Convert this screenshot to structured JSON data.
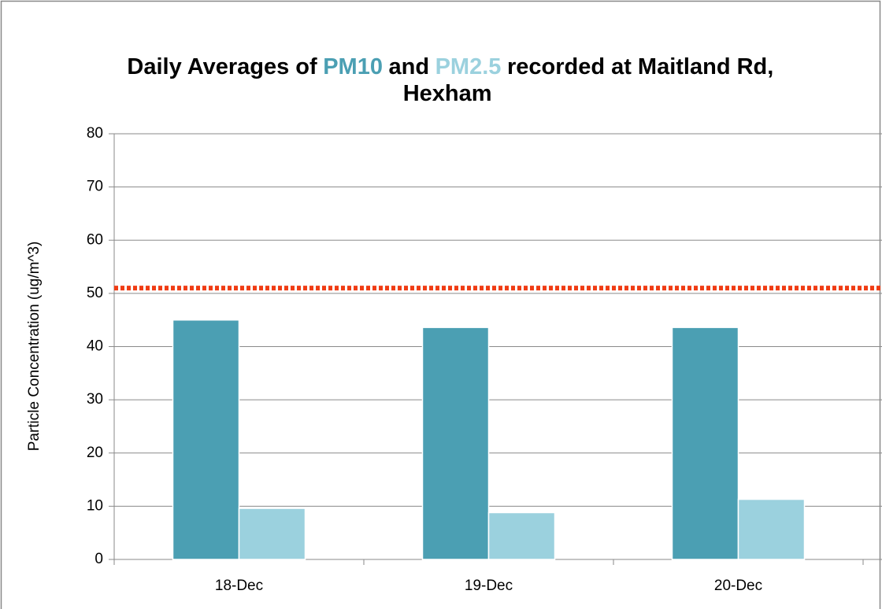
{
  "chart_data": {
    "type": "bar",
    "title": [
      "Daily Averages of",
      "and",
      "recorded at Maitland Rd, Hexham"
    ],
    "y_label": "Particle Concentration (ug/m^3)",
    "categories": [
      "18-Dec",
      "19-Dec",
      "20-Dec"
    ],
    "series": [
      {
        "name": "PM10",
        "color": "#4b9fb3",
        "values": [
          45,
          43.6,
          43.6
        ]
      },
      {
        "name": "PM2.5",
        "color": "#9bd1de",
        "values": [
          9.6,
          8.8,
          11.3
        ]
      }
    ],
    "ylim": [
      0,
      80
    ],
    "yticks": [
      0,
      10,
      20,
      30,
      40,
      50,
      60,
      70,
      80
    ],
    "grid": true,
    "reference_line": {
      "value": 51,
      "color": "#f03c14"
    }
  }
}
